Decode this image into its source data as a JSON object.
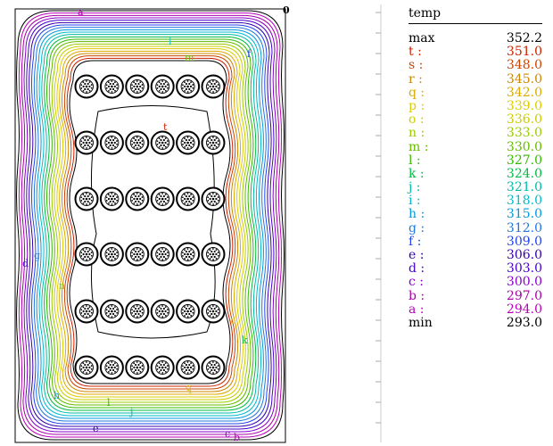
{
  "plot": {
    "corner_label": "0",
    "contour_labels": [
      {
        "text": "a",
        "color": "#bb00bb"
      },
      {
        "text": "i",
        "color": "#00bbcc"
      },
      {
        "text": "m",
        "color": "#66bb00"
      },
      {
        "text": "f",
        "color": "#2244ee"
      },
      {
        "text": "t",
        "color": "#cc2200"
      },
      {
        "text": "g",
        "color": "#2277dd"
      },
      {
        "text": "d",
        "color": "#4400cc"
      },
      {
        "text": "n",
        "color": "#88cc00"
      },
      {
        "text": "o",
        "color": "#dddd00"
      },
      {
        "text": "k",
        "color": "#00bb66"
      },
      {
        "text": "q",
        "color": "#ddbb00"
      },
      {
        "text": "h",
        "color": "#0099dd"
      },
      {
        "text": "l",
        "color": "#33bb00"
      },
      {
        "text": "j",
        "color": "#00bbaa"
      },
      {
        "text": "e",
        "color": "#3300aa"
      },
      {
        "text": "c",
        "color": "#8800cc"
      },
      {
        "text": "b",
        "color": "#aa00aa"
      }
    ]
  },
  "legend": {
    "title": "temp",
    "rows": [
      {
        "key": "max",
        "value": "352.2",
        "color": "#000000"
      },
      {
        "key": "t :",
        "value": "351.0",
        "color": "#cc2200"
      },
      {
        "key": "s :",
        "value": "348.0",
        "color": "#cc4400"
      },
      {
        "key": "r :",
        "value": "345.0",
        "color": "#cc8800"
      },
      {
        "key": "q :",
        "value": "342.0",
        "color": "#ddaa00"
      },
      {
        "key": "p :",
        "value": "339.0",
        "color": "#ddcc00"
      },
      {
        "key": "o :",
        "value": "336.0",
        "color": "#cccc00"
      },
      {
        "key": "n :",
        "value": "333.0",
        "color": "#99cc00"
      },
      {
        "key": "m :",
        "value": "330.0",
        "color": "#66bb00"
      },
      {
        "key": "l :",
        "value": "327.0",
        "color": "#33bb00"
      },
      {
        "key": "k :",
        "value": "324.0",
        "color": "#00bb44"
      },
      {
        "key": "j :",
        "value": "321.0",
        "color": "#00bbaa"
      },
      {
        "key": "i :",
        "value": "318.0",
        "color": "#00bbcc"
      },
      {
        "key": "h :",
        "value": "315.0",
        "color": "#0099dd"
      },
      {
        "key": "g :",
        "value": "312.0",
        "color": "#2277dd"
      },
      {
        "key": "f :",
        "value": "309.0",
        "color": "#2244ee"
      },
      {
        "key": "e :",
        "value": "306.0",
        "color": "#3300aa"
      },
      {
        "key": "d :",
        "value": "303.0",
        "color": "#4400cc"
      },
      {
        "key": "c :",
        "value": "300.0",
        "color": "#8800cc"
      },
      {
        "key": "b :",
        "value": "297.0",
        "color": "#aa00aa"
      },
      {
        "key": "a :",
        "value": "294.0",
        "color": "#bb00bb"
      },
      {
        "key": "min",
        "value": "293.0",
        "color": "#000000"
      }
    ]
  }
}
